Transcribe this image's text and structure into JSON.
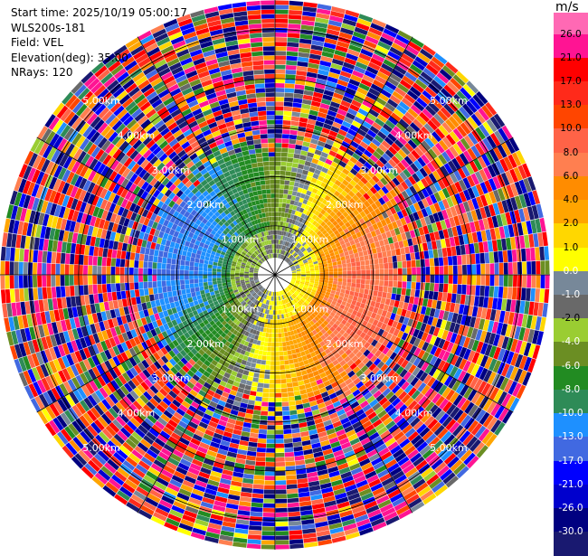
{
  "info": {
    "start_time": "Start time: 2025/10/19 05:00:17",
    "instrument": "WLS200s-181",
    "field": "Field: VEL",
    "elevation": "Elevation(deg): 35.00",
    "nrays": "NRays: 120"
  },
  "colorbar": {
    "unit": "m/s",
    "levels": [
      {
        "label": "26.0",
        "color": "#ff1493"
      },
      {
        "label": "21.0",
        "color": "#ff0000"
      },
      {
        "label": "17.0",
        "color": "#ff2a1a"
      },
      {
        "label": "13.0",
        "color": "#ff4500"
      },
      {
        "label": "10.0",
        "color": "#ff6347"
      },
      {
        "label": "8.0",
        "color": "#ff7f50"
      },
      {
        "label": "6.0",
        "color": "#ff8c00"
      },
      {
        "label": "4.0",
        "color": "#ffa500"
      },
      {
        "label": "2.0",
        "color": "#ffd700"
      },
      {
        "label": "1.0",
        "color": "#ffff00"
      },
      {
        "label": "0.0",
        "color": "#778899"
      },
      {
        "label": "-1.0",
        "color": "#696969"
      },
      {
        "label": "-2.0",
        "color": "#9acd32"
      },
      {
        "label": "-4.0",
        "color": "#6b8e23"
      },
      {
        "label": "-6.0",
        "color": "#228b22"
      },
      {
        "label": "-8.0",
        "color": "#2e8b57"
      },
      {
        "label": "-10.0",
        "color": "#1e90ff"
      },
      {
        "label": "-13.0",
        "color": "#4169e1"
      },
      {
        "label": "-17.0",
        "color": "#0000ff"
      },
      {
        "label": "-21.0",
        "color": "#0000cd"
      },
      {
        "label": "-26.0",
        "color": "#000080"
      },
      {
        "label": "-30.0",
        "color": "#191970"
      }
    ],
    "top_color": "#ff69b4"
  },
  "chart_data": {
    "type": "heatmap",
    "projection": "polar-ppi",
    "field": "VEL",
    "nrays": 120,
    "range_rings_km": [
      1,
      2,
      3,
      4,
      5
    ],
    "ring_labels": [
      "1.00km",
      "2.00km",
      "3.00km",
      "4.00km",
      "5.00km"
    ],
    "max_range_km": 5.6,
    "vmin": -30,
    "vmax": 30,
    "pattern": "dipole: positive (receding) toward east/south-east, negative (approaching) toward west/north-west; noisy beyond ~2.5 km",
    "noise_start_km": 2.6
  }
}
